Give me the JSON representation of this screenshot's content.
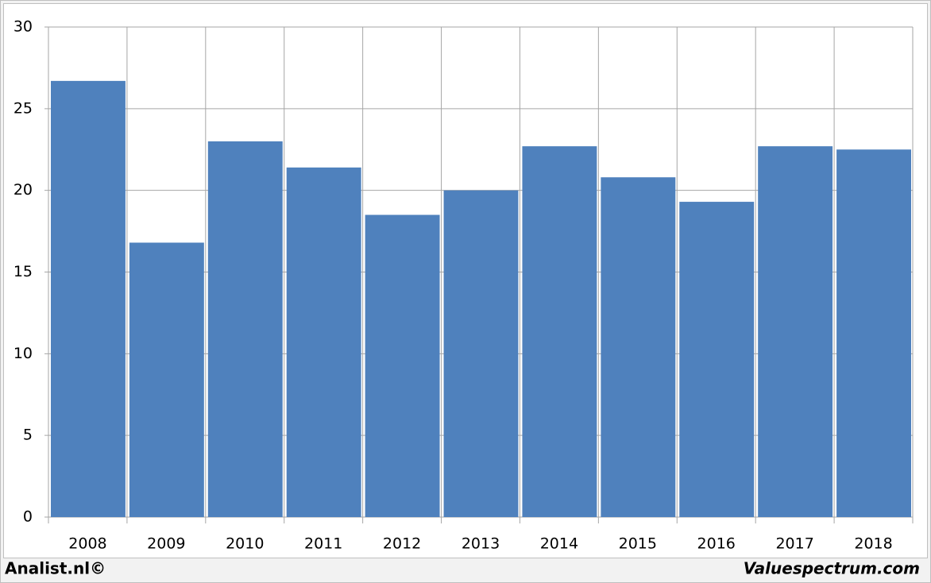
{
  "chart_data": {
    "type": "bar",
    "categories": [
      "2008",
      "2009",
      "2010",
      "2011",
      "2012",
      "2013",
      "2014",
      "2015",
      "2016",
      "2017",
      "2018"
    ],
    "values": [
      26.7,
      16.8,
      23.0,
      21.4,
      18.5,
      20.0,
      22.7,
      20.8,
      19.3,
      22.7,
      22.5
    ],
    "color": "#4f81bd",
    "ylim": [
      0,
      30
    ],
    "yticks": [
      0,
      5,
      10,
      15,
      20,
      25,
      30
    ],
    "grid": true
  },
  "footer": {
    "left": "Analist.nl©",
    "right": "Valuespectrum.com"
  }
}
